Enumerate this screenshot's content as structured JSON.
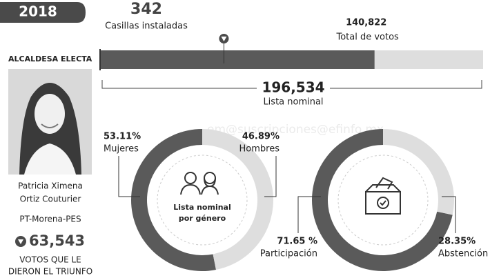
{
  "year": "2018",
  "casillas": {
    "value": 342,
    "label": "Casillas instaladas"
  },
  "winner": {
    "heading": "ALCALDESA ELECTA",
    "name": [
      "Patricia Ximena",
      "Ortiz Couturier"
    ],
    "party": "PT-Morena-PES",
    "votes_caption": [
      "VOTOS QUE LE",
      "DIERON EL TRIUNFO"
    ]
  },
  "watermark": "em@suscripciones@efinfo.mx",
  "chart_data": [
    {
      "type": "bar",
      "categories": [
        "Total de votos",
        "Lista nominal"
      ],
      "values": [
        140822,
        196534
      ],
      "value_labels": [
        "140,822",
        "196,534"
      ],
      "colors": [
        "#5a5a5a",
        "#dedede"
      ],
      "xlim": [
        0,
        196534
      ],
      "marker": {
        "value": 63543,
        "label": "63,543"
      }
    },
    {
      "type": "pie",
      "donut": true,
      "direction": "counterclockwise",
      "title": [
        "Lista nominal",
        "por género"
      ],
      "categories": [
        "Mujeres",
        "Hombres"
      ],
      "values": [
        53.11,
        46.89
      ],
      "value_labels": [
        "53.11%",
        "46.89%"
      ],
      "colors": [
        "#5a5a5a",
        "#dedede"
      ]
    },
    {
      "type": "pie",
      "donut": true,
      "direction": "counterclockwise",
      "categories": [
        "Participación",
        "Abstención"
      ],
      "values": [
        71.65,
        28.35
      ],
      "value_labels": [
        "71.65 %",
        "28.35%"
      ],
      "colors": [
        "#5a5a5a",
        "#dedede"
      ]
    }
  ]
}
